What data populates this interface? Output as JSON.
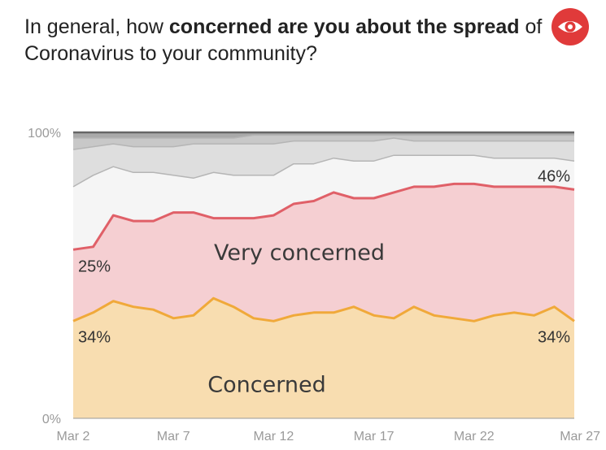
{
  "title": {
    "part1": "In general, how ",
    "bold1": "concerned are you about the spread",
    "part2": " of Coronavirus to your community?"
  },
  "logo": {
    "icon": "eye-icon",
    "color": "#e03a3a"
  },
  "chart_data": {
    "type": "area",
    "stacked": true,
    "title": "In general, how concerned are you about the spread of Coronavirus to your community?",
    "x": [
      "Mar 2",
      "Mar 3",
      "Mar 4",
      "Mar 5",
      "Mar 6",
      "Mar 7",
      "Mar 8",
      "Mar 9",
      "Mar 10",
      "Mar 11",
      "Mar 12",
      "Mar 13",
      "Mar 14",
      "Mar 15",
      "Mar 16",
      "Mar 17",
      "Mar 18",
      "Mar 19",
      "Mar 20",
      "Mar 21",
      "Mar 22",
      "Mar 23",
      "Mar 24",
      "Mar 25",
      "Mar 26",
      "Mar 27"
    ],
    "x_ticks": [
      "Mar 2",
      "Mar 7",
      "Mar 12",
      "Mar 17",
      "Mar 22",
      "Mar 27"
    ],
    "y_ticks": [
      "100%",
      "0%"
    ],
    "ylim": [
      0,
      100
    ],
    "series": [
      {
        "name": "Concerned",
        "color": "#f8ddb0",
        "line_color": "#f0a93a",
        "values": [
          34,
          37,
          41,
          39,
          38,
          35,
          36,
          42,
          39,
          35,
          34,
          36,
          37,
          37,
          39,
          36,
          35,
          39,
          36,
          35,
          34,
          36,
          37,
          36,
          39,
          34
        ]
      },
      {
        "name": "Very concerned",
        "color": "#f5cfd2",
        "line_color": "#e06068",
        "values": [
          25,
          23,
          30,
          30,
          31,
          37,
          36,
          28,
          31,
          35,
          37,
          39,
          39,
          42,
          38,
          41,
          44,
          42,
          45,
          47,
          48,
          45,
          44,
          45,
          42,
          46
        ]
      },
      {
        "values": [
          22,
          25,
          17,
          17,
          17,
          13,
          12,
          16,
          15,
          15,
          14,
          14,
          13,
          12,
          13,
          13,
          13,
          11,
          11,
          10,
          10,
          10,
          10,
          10,
          10,
          10
        ],
        "color": "#f5f5f5"
      },
      {
        "values": [
          13,
          10,
          8,
          9,
          9,
          10,
          12,
          10,
          11,
          11,
          11,
          8,
          8,
          6,
          7,
          7,
          6,
          5,
          5,
          5,
          5,
          6,
          6,
          6,
          6,
          7
        ],
        "color": "#dedede"
      },
      {
        "values": [
          4,
          3,
          2,
          3,
          3,
          3,
          2,
          2,
          2,
          3,
          3,
          2,
          2,
          2,
          2,
          2,
          1,
          2,
          2,
          2,
          2,
          2,
          2,
          2,
          2,
          2
        ],
        "color": "#c8c8c8"
      },
      {
        "values": [
          2,
          2,
          2,
          2,
          2,
          2,
          2,
          2,
          2,
          1,
          1,
          1,
          1,
          1,
          1,
          1,
          1,
          1,
          1,
          1,
          1,
          1,
          1,
          1,
          1,
          1
        ],
        "color": "#a9a9a9"
      }
    ],
    "annotations": [
      {
        "text": "25%",
        "series": "Very concerned",
        "at": "Mar 2"
      },
      {
        "text": "46%",
        "series": "Very concerned",
        "at": "Mar 27"
      },
      {
        "text": "34%",
        "series": "Concerned",
        "at": "Mar 2"
      },
      {
        "text": "34%",
        "series": "Concerned",
        "at": "Mar 27"
      },
      {
        "text": "Very concerned",
        "series": "Very concerned"
      },
      {
        "text": "Concerned",
        "series": "Concerned"
      }
    ]
  }
}
